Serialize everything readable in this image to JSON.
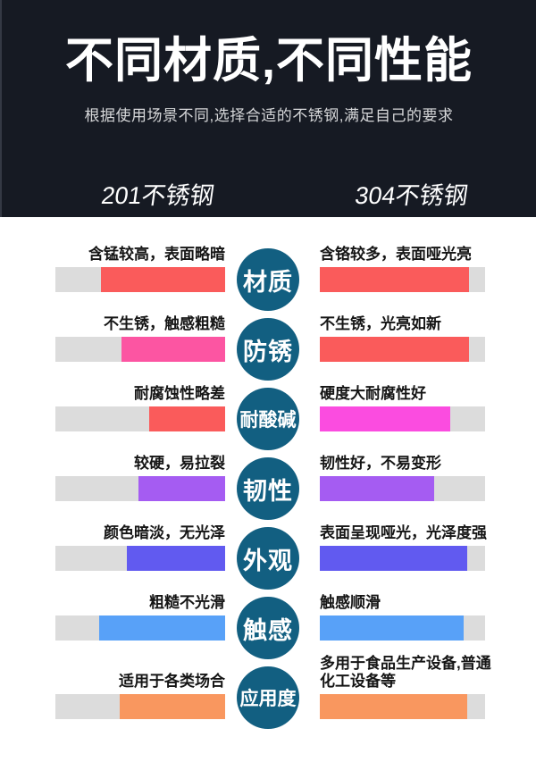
{
  "header": {
    "title": "不同材质,不同性能",
    "subtitle": "根据使用场景不同,选择合适的不锈钢,满足自己的要求",
    "col_left": "201不锈钢",
    "col_right": "304不锈钢"
  },
  "colors": {
    "header_bg": "#161a23",
    "track": "#dcdcdc",
    "circle": "#125f81"
  },
  "rows": [
    {
      "category": "材质",
      "left": {
        "text": "含锰较高，表面略暗",
        "pct": 73,
        "color": "#fa5b5b"
      },
      "right": {
        "text": "含铬较多，表面哑光亮",
        "pct": 90,
        "color": "#fa5b5b"
      }
    },
    {
      "category": "防锈",
      "left": {
        "text": "不生锈，触感粗糙",
        "pct": 61,
        "color": "#fc55a2"
      },
      "right": {
        "text": "不生锈，光亮如新",
        "pct": 90,
        "color": "#fa5b5b"
      }
    },
    {
      "category": "耐酸碱",
      "left": {
        "text": "耐腐蚀性略差",
        "pct": 45,
        "color": "#fa5b5b"
      },
      "right": {
        "text": "硬度大耐腐性好",
        "pct": 79,
        "color": "#fb4ce0"
      }
    },
    {
      "category": "韧性",
      "left": {
        "text": "较硬，易拉裂",
        "pct": 51,
        "color": "#a55cf2"
      },
      "right": {
        "text": "韧性好，不易变形",
        "pct": 69,
        "color": "#a55cf2"
      }
    },
    {
      "category": "外观",
      "left": {
        "text": "颜色暗淡，无光泽",
        "pct": 58,
        "color": "#615af0"
      },
      "right": {
        "text": "表面呈现哑光，光泽度强",
        "pct": 89,
        "color": "#615af0"
      }
    },
    {
      "category": "触感",
      "left": {
        "text": "粗糙不光滑",
        "pct": 74,
        "color": "#58a1f8"
      },
      "right": {
        "text": "触感顺滑",
        "pct": 87,
        "color": "#58a1f8"
      }
    },
    {
      "category": "应用度",
      "left": {
        "text": "适用于各类场合",
        "pct": 62,
        "color": "#f9975f"
      },
      "right": {
        "text": "多用于食品生产设备,普通化工设备等",
        "pct": 89,
        "color": "#f9975f"
      }
    }
  ],
  "chart_data": {
    "type": "bar",
    "orientation": "horizontal",
    "title": "不同材质,不同性能",
    "subtitle": "根据使用场景不同,选择合适的不锈钢,满足自己的要求",
    "categories": [
      "材质",
      "防锈",
      "耐酸碱",
      "韧性",
      "外观",
      "触感",
      "应用度"
    ],
    "series": [
      {
        "name": "201不锈钢",
        "values": [
          73,
          61,
          45,
          51,
          58,
          74,
          62
        ]
      },
      {
        "name": "304不锈钢",
        "values": [
          90,
          90,
          79,
          69,
          89,
          87,
          89
        ]
      }
    ],
    "value_range": [
      0,
      100
    ],
    "legend_position": "top",
    "grid": false
  }
}
